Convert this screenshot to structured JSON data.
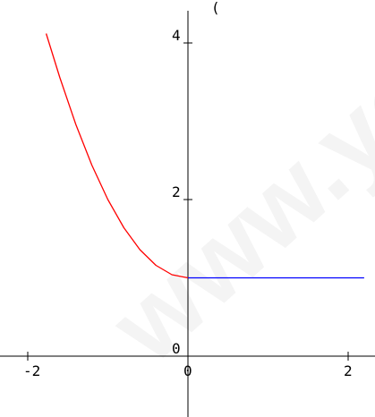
{
  "watermark": "www.yo",
  "top_mark": "(",
  "chart_data": {
    "type": "line",
    "title": "",
    "xlabel": "",
    "ylabel": "",
    "xlim": [
      -2.2,
      2.2
    ],
    "ylim": [
      -0.4,
      4.1
    ],
    "grid": false,
    "legend": "none",
    "x_ticks": [
      {
        "value": -2,
        "label": "-2"
      },
      {
        "value": 0,
        "label": "0"
      },
      {
        "value": 2,
        "label": "2"
      }
    ],
    "y_ticks": [
      {
        "value": 0,
        "label": "0"
      },
      {
        "value": 2,
        "label": "2"
      },
      {
        "value": 4,
        "label": "4"
      }
    ],
    "series": [
      {
        "color": "#ff0000",
        "x": [
          -1.77,
          -1.6,
          -1.4,
          -1.2,
          -1.0,
          -0.8,
          -0.6,
          -0.4,
          -0.2,
          0.0
        ],
        "y": [
          4.12,
          3.56,
          2.96,
          2.44,
          2.0,
          1.64,
          1.36,
          1.16,
          1.04,
          1.0
        ]
      },
      {
        "color": "#0000ff",
        "x": [
          0.0,
          2.2
        ],
        "y": [
          1.0,
          1.0
        ]
      }
    ]
  }
}
